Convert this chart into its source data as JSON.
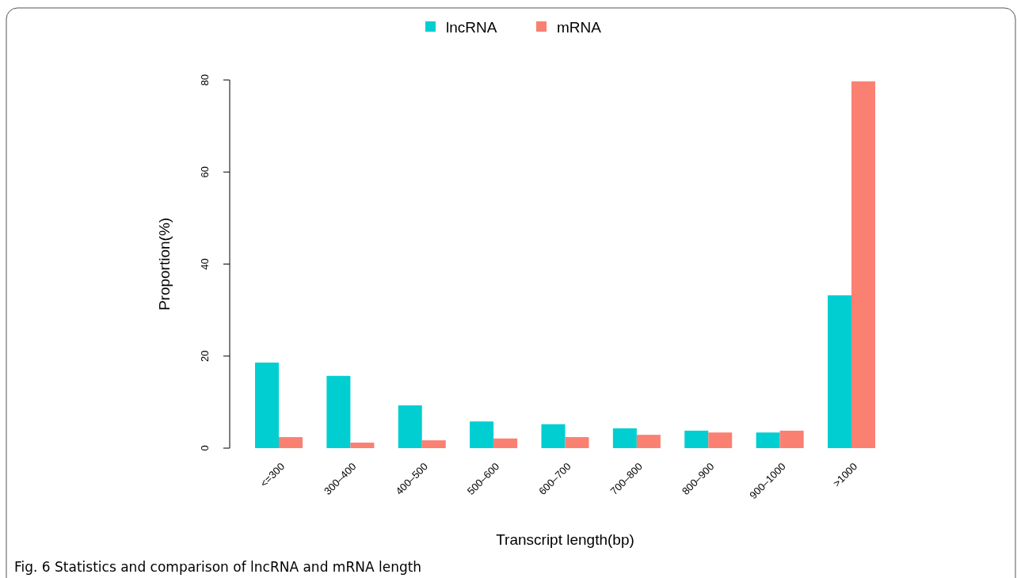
{
  "chart_data": {
    "type": "bar",
    "xlabel": "Transcript length(bp)",
    "ylabel": "Proportion(%)",
    "categories": [
      "<=300",
      "300–400",
      "400–500",
      "500–600",
      "600–700",
      "700–800",
      "800–900",
      "900–1000",
      ">1000"
    ],
    "series": [
      {
        "name": "lncRNA",
        "color": "#00ced1",
        "values": [
          18.6,
          15.7,
          9.3,
          5.8,
          5.2,
          4.3,
          3.8,
          3.4,
          33.2
        ]
      },
      {
        "name": "mRNA",
        "color": "#fa8072",
        "values": [
          2.4,
          1.2,
          1.7,
          2.1,
          2.4,
          2.9,
          3.4,
          3.8,
          79.7
        ]
      }
    ],
    "ylim": [
      0,
      80
    ],
    "yticks": [
      0,
      20,
      40,
      60,
      80
    ],
    "legend": "top",
    "grid": false,
    "annotations": [
      "Fig. 6 Statistics and comparison of lncRNA and mRNA length"
    ]
  }
}
